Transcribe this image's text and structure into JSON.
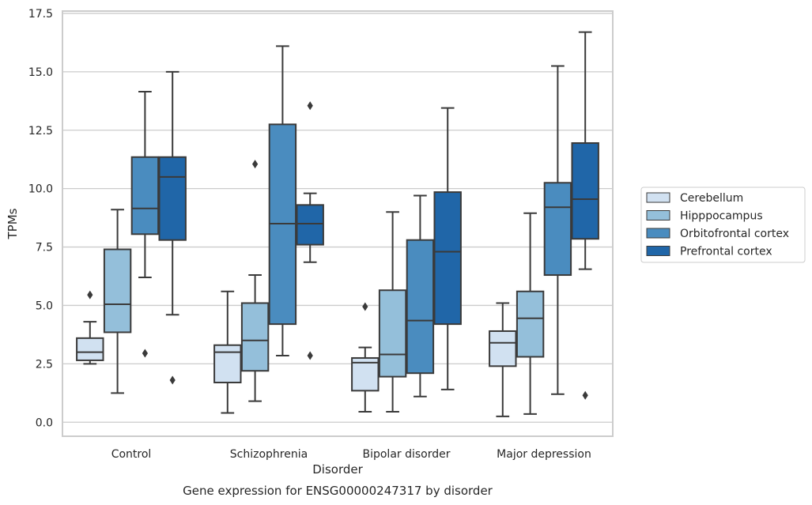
{
  "chart_data": {
    "type": "box",
    "title": "Gene expression for ENSG00000247317 by disorder",
    "xlabel": "Disorder",
    "ylabel": "TPMs",
    "ylim": [
      -0.6,
      17.6
    ],
    "yticks": [
      "0.0",
      "2.5",
      "5.0",
      "7.5",
      "10.0",
      "12.5",
      "15.0",
      "17.5"
    ],
    "grid": "horizontal",
    "legend_placement": "right",
    "categories": [
      "Control",
      "Schizophrenia",
      "Bipolar disorder",
      "Major depression"
    ],
    "series": [
      {
        "name": "Cerebellum",
        "color": "#d1e1f1",
        "boxes": [
          {
            "whislo": 2.5,
            "q1": 2.65,
            "med": 3.0,
            "q3": 3.6,
            "whishi": 4.3,
            "fliers": [
              5.45
            ]
          },
          {
            "whislo": 0.4,
            "q1": 1.7,
            "med": 3.0,
            "q3": 3.3,
            "whishi": 5.6,
            "fliers": []
          },
          {
            "whislo": 0.45,
            "q1": 1.35,
            "med": 2.55,
            "q3": 2.75,
            "whishi": 3.2,
            "fliers": [
              4.95
            ]
          },
          {
            "whislo": 0.25,
            "q1": 2.4,
            "med": 3.4,
            "q3": 3.9,
            "whishi": 5.1,
            "fliers": []
          }
        ]
      },
      {
        "name": "Hipppocampus",
        "color": "#94bfda",
        "boxes": [
          {
            "whislo": 1.25,
            "q1": 3.85,
            "med": 5.05,
            "q3": 7.4,
            "whishi": 9.1,
            "fliers": []
          },
          {
            "whislo": 0.9,
            "q1": 2.2,
            "med": 3.5,
            "q3": 5.1,
            "whishi": 6.3,
            "fliers": [
              11.05
            ]
          },
          {
            "whislo": 0.45,
            "q1": 1.95,
            "med": 2.9,
            "q3": 5.65,
            "whishi": 9.0,
            "fliers": []
          },
          {
            "whislo": 0.35,
            "q1": 2.8,
            "med": 4.45,
            "q3": 5.6,
            "whishi": 8.95,
            "fliers": []
          }
        ]
      },
      {
        "name": "Orbitofrontal cortex",
        "color": "#4a8cbf",
        "boxes": [
          {
            "whislo": 6.2,
            "q1": 8.05,
            "med": 9.15,
            "q3": 11.35,
            "whishi": 14.15,
            "fliers": [
              2.95
            ]
          },
          {
            "whislo": 2.85,
            "q1": 4.2,
            "med": 8.5,
            "q3": 12.75,
            "whishi": 16.1,
            "fliers": []
          },
          {
            "whislo": 1.1,
            "q1": 2.1,
            "med": 4.35,
            "q3": 7.8,
            "whishi": 9.7,
            "fliers": []
          },
          {
            "whislo": 1.2,
            "q1": 6.3,
            "med": 9.2,
            "q3": 10.25,
            "whishi": 15.25,
            "fliers": []
          }
        ]
      },
      {
        "name": "Prefrontal cortex",
        "color": "#2066a8",
        "boxes": [
          {
            "whislo": 4.6,
            "q1": 7.8,
            "med": 10.5,
            "q3": 11.35,
            "whishi": 15.0,
            "fliers": [
              1.8
            ]
          },
          {
            "whislo": 6.85,
            "q1": 7.6,
            "med": 8.5,
            "q3": 9.3,
            "whishi": 9.8,
            "fliers": [
              13.55,
              2.85
            ]
          },
          {
            "whislo": 1.4,
            "q1": 4.2,
            "med": 7.3,
            "q3": 9.85,
            "whishi": 13.45,
            "fliers": []
          },
          {
            "whislo": 6.55,
            "q1": 7.85,
            "med": 9.55,
            "q3": 11.95,
            "whishi": 16.7,
            "fliers": [
              1.15
            ]
          }
        ]
      }
    ]
  }
}
